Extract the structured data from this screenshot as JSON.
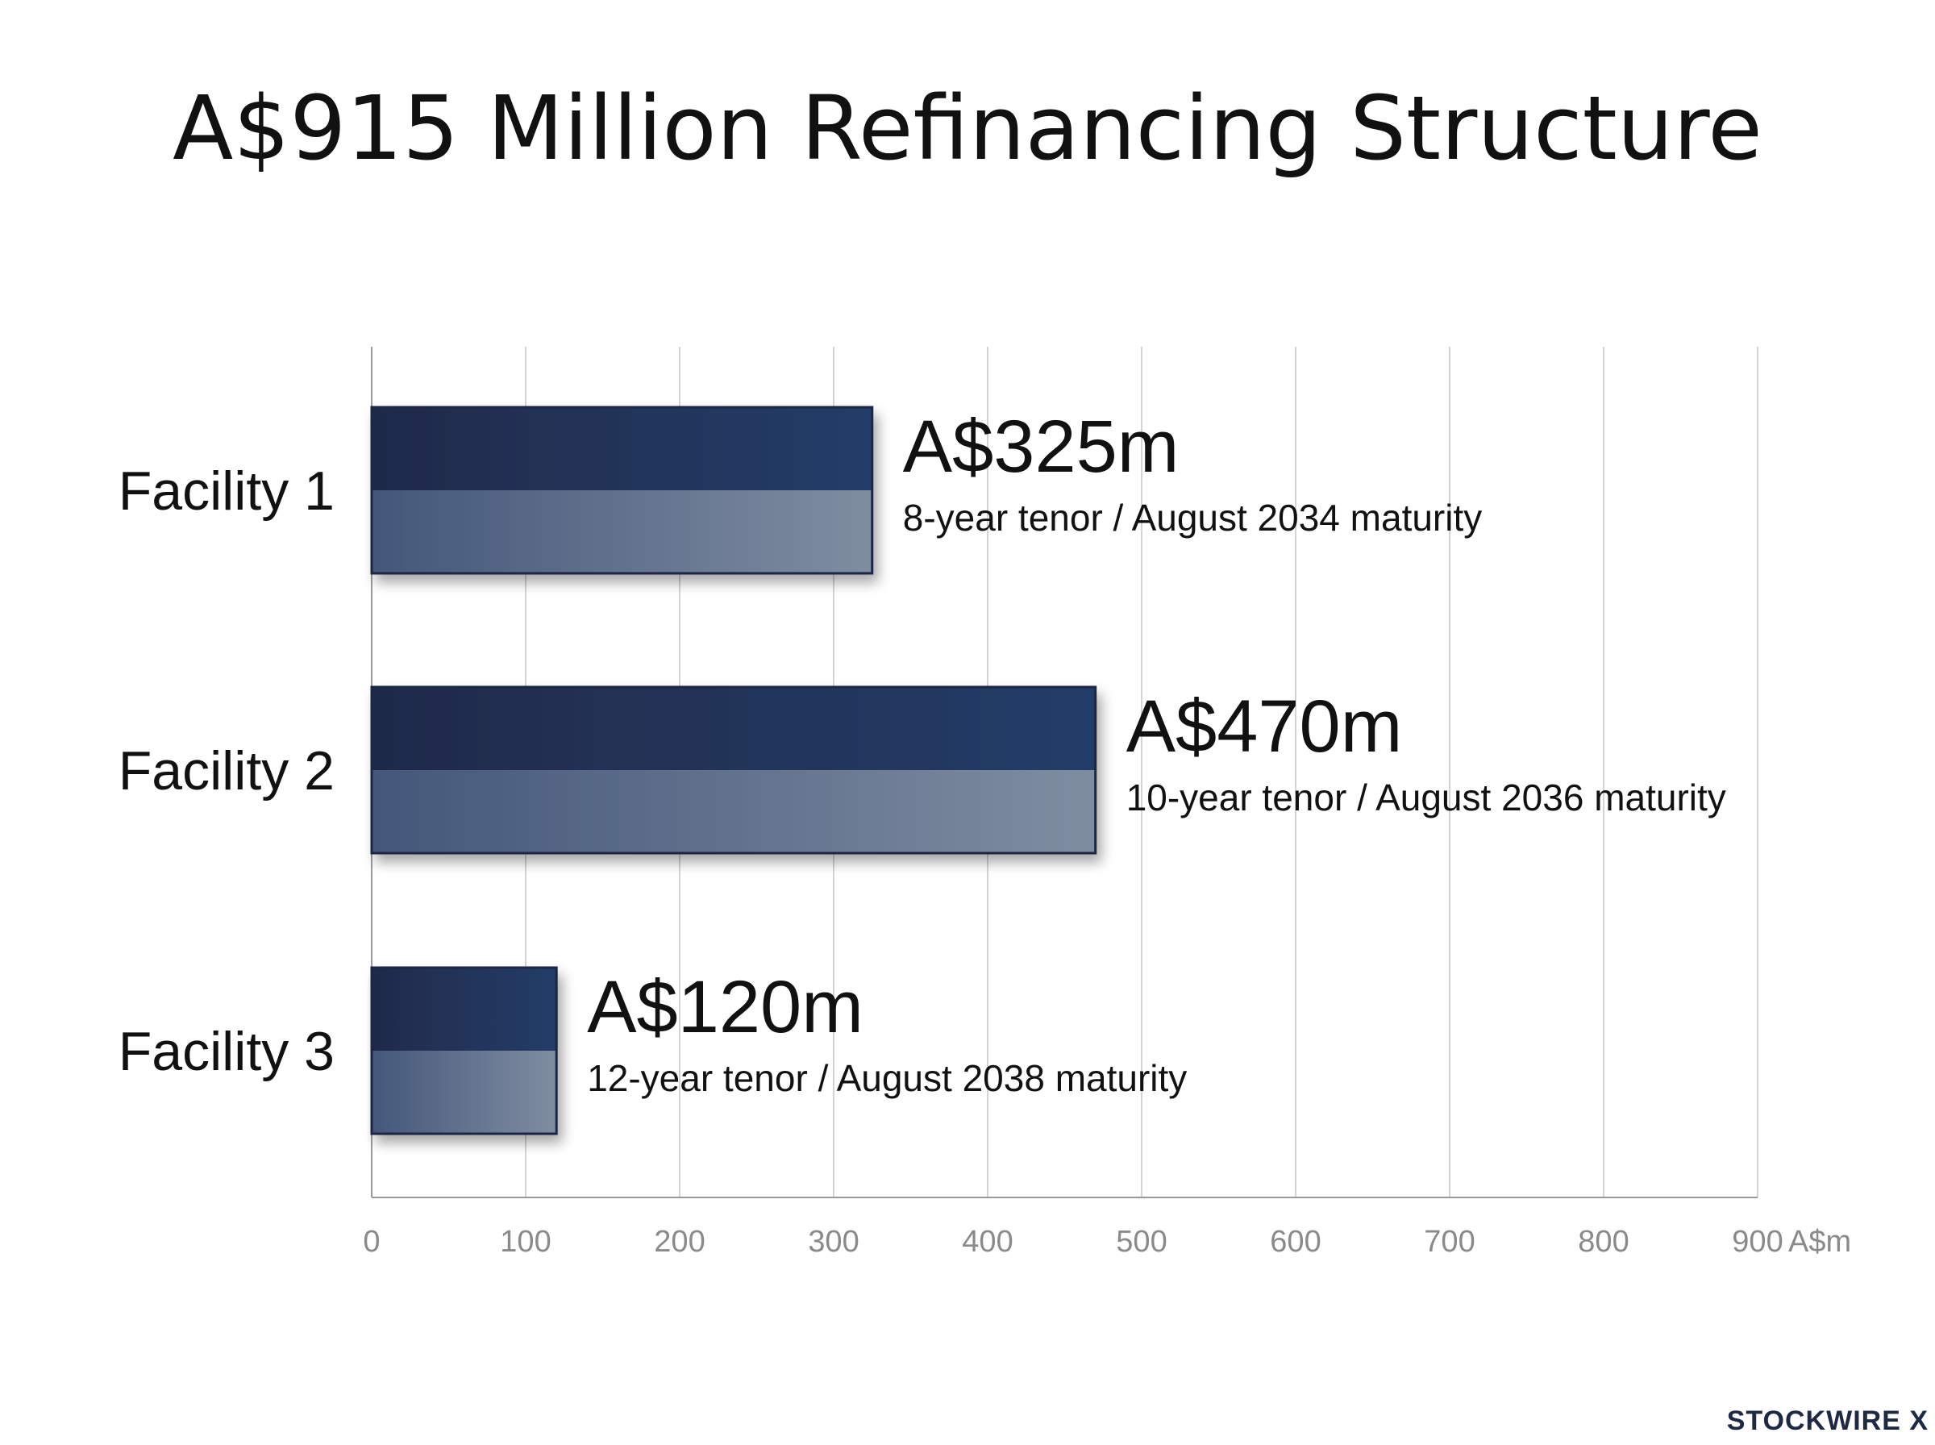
{
  "chart_data": {
    "type": "bar",
    "orientation": "horizontal",
    "title": "A$915 Million Refinancing Structure",
    "categories": [
      "Facility 1",
      "Facility 2",
      "Facility 3"
    ],
    "values": [
      325,
      470,
      120
    ],
    "value_labels": [
      "A$325m",
      "A$470m",
      "A$120m"
    ],
    "annotations": [
      "8-year tenor / August 2034 maturity",
      "10-year tenor / August 2036 maturity",
      "12-year tenor / August 2038 maturity"
    ],
    "x_ticks": [
      0,
      100,
      200,
      300,
      400,
      500,
      600,
      700,
      800,
      900
    ],
    "x_unit": "A$m",
    "xlim": [
      0,
      900
    ],
    "grid": "vertical",
    "colors": {
      "bar_top_dark": "#1f2a4a",
      "bar_top_light": "#233b66",
      "bar_bottom_dark": "#475a78",
      "bar_bottom_light": "#7e8ca0",
      "bar_border": "#1c2745",
      "grid": "#d4d4d4",
      "axis": "#9a9a9a",
      "tick_text": "#8a8a8a",
      "text": "#111111"
    }
  },
  "brand": {
    "name": "STOCKWIRE X"
  }
}
